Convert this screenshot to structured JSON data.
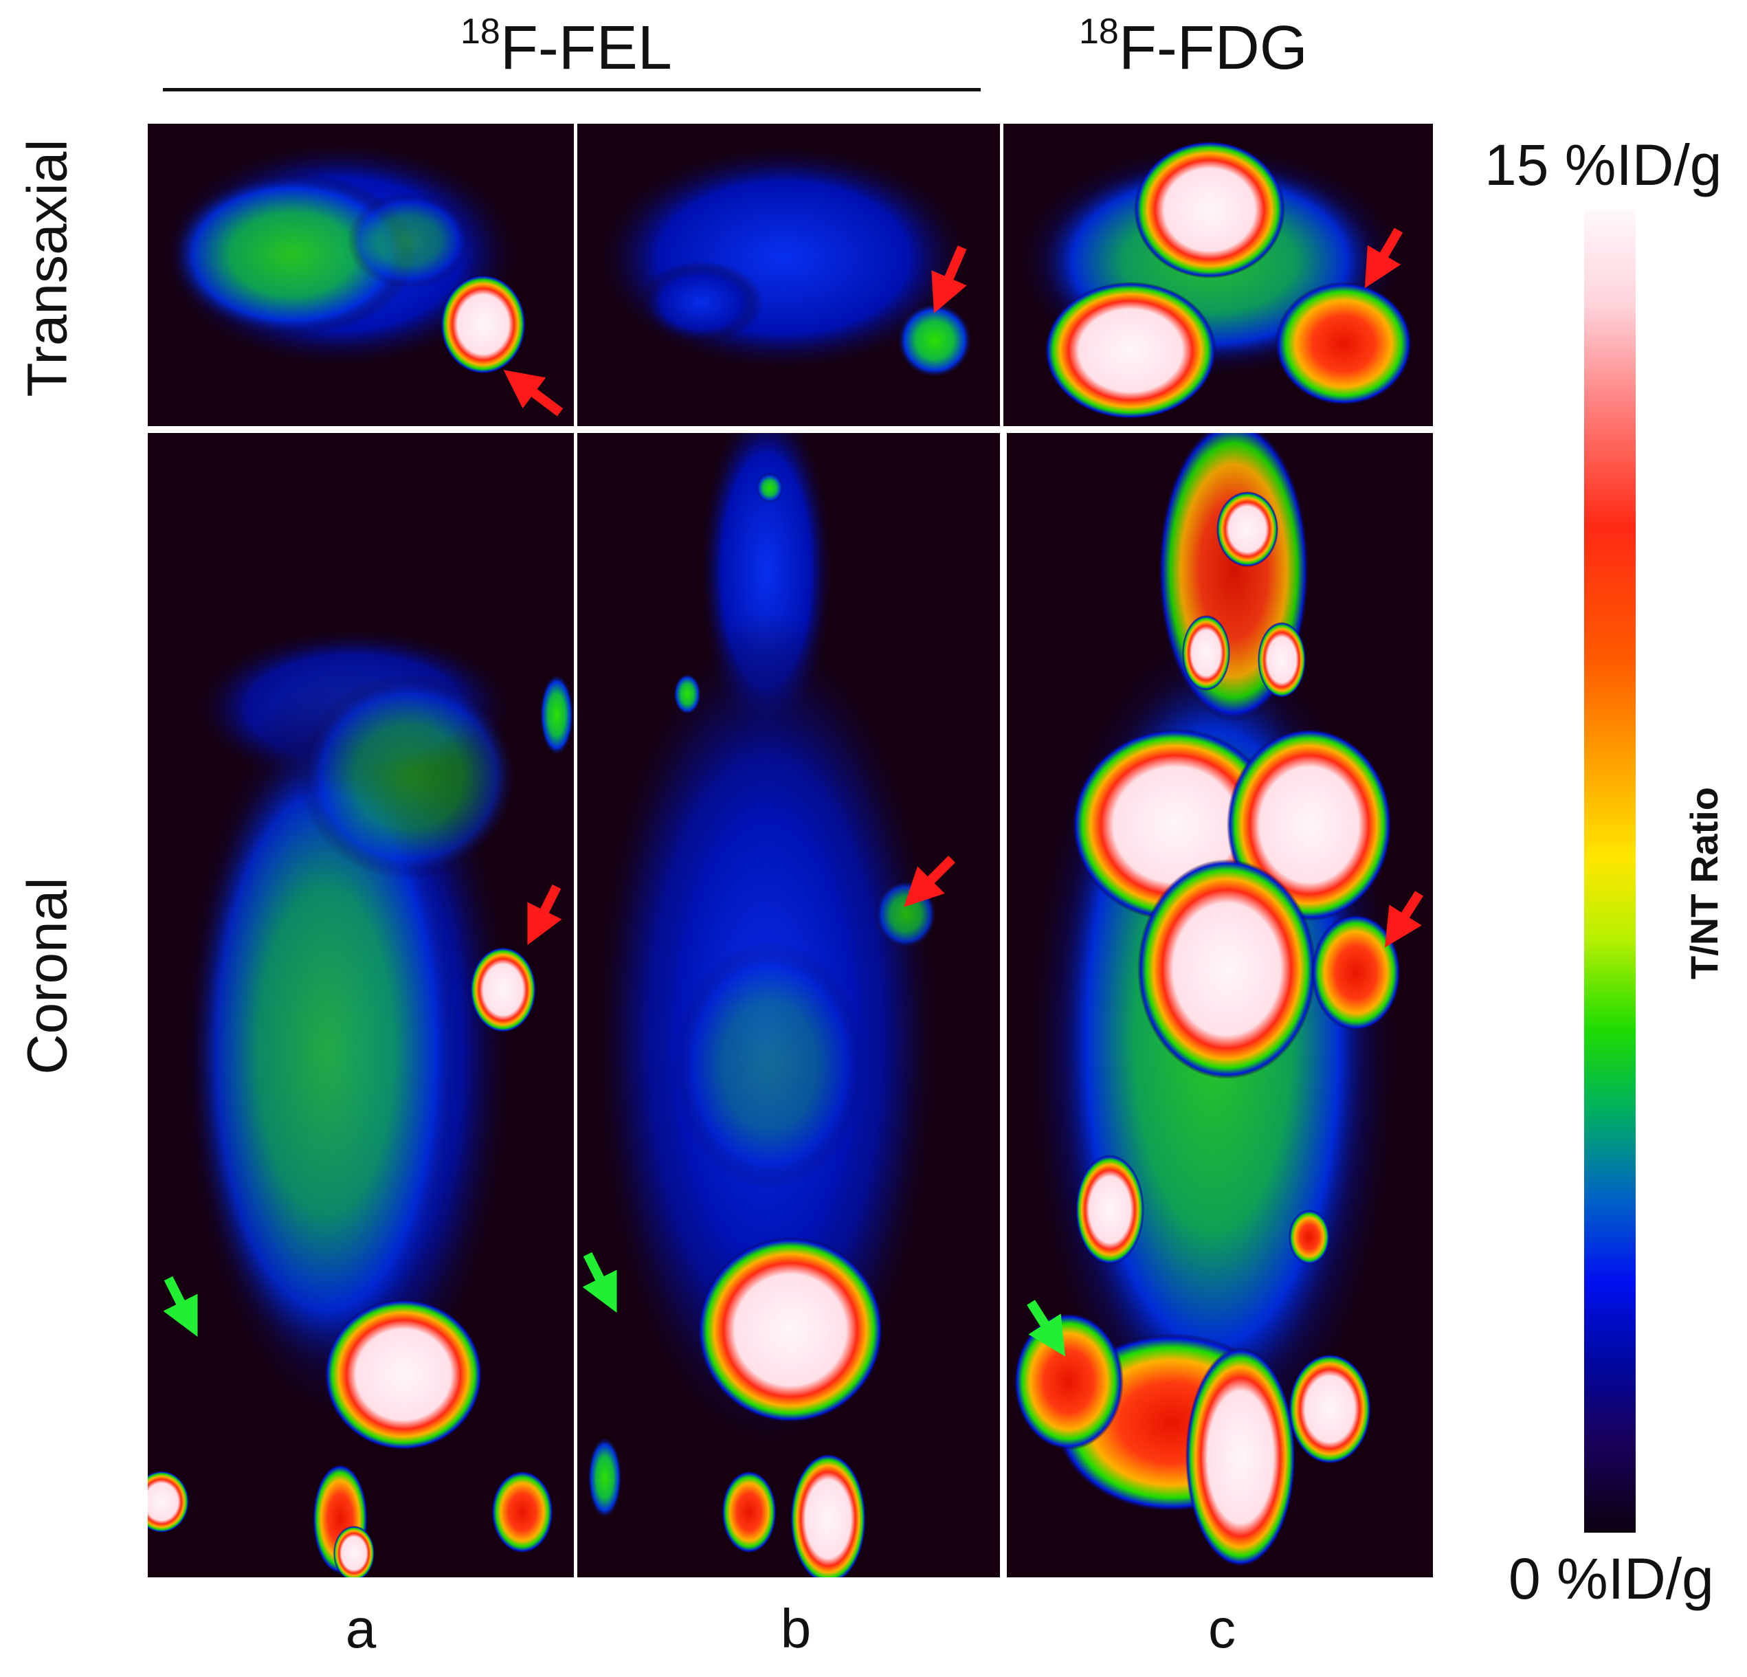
{
  "headers": {
    "fel": {
      "sup": "18",
      "text": "F-FEL"
    },
    "fdg": {
      "sup": "18",
      "text": "F-FDG"
    }
  },
  "rows": {
    "transaxial": "Transaxial",
    "coronal": "Coronal"
  },
  "panels": [
    "a",
    "b",
    "c"
  ],
  "colorbar": {
    "max_label": "15 %ID/g",
    "min_label": "0 %ID/g",
    "ratio_label": "T/NT Ratio"
  },
  "colors": {
    "background": "#16000f",
    "low": "#0010f0",
    "mid": "#1edc00",
    "high": "#ff2a14",
    "saturated": "#fff0f5",
    "arrow_tumor": "#ff1a1a",
    "arrow_marker": "#22ee33"
  }
}
